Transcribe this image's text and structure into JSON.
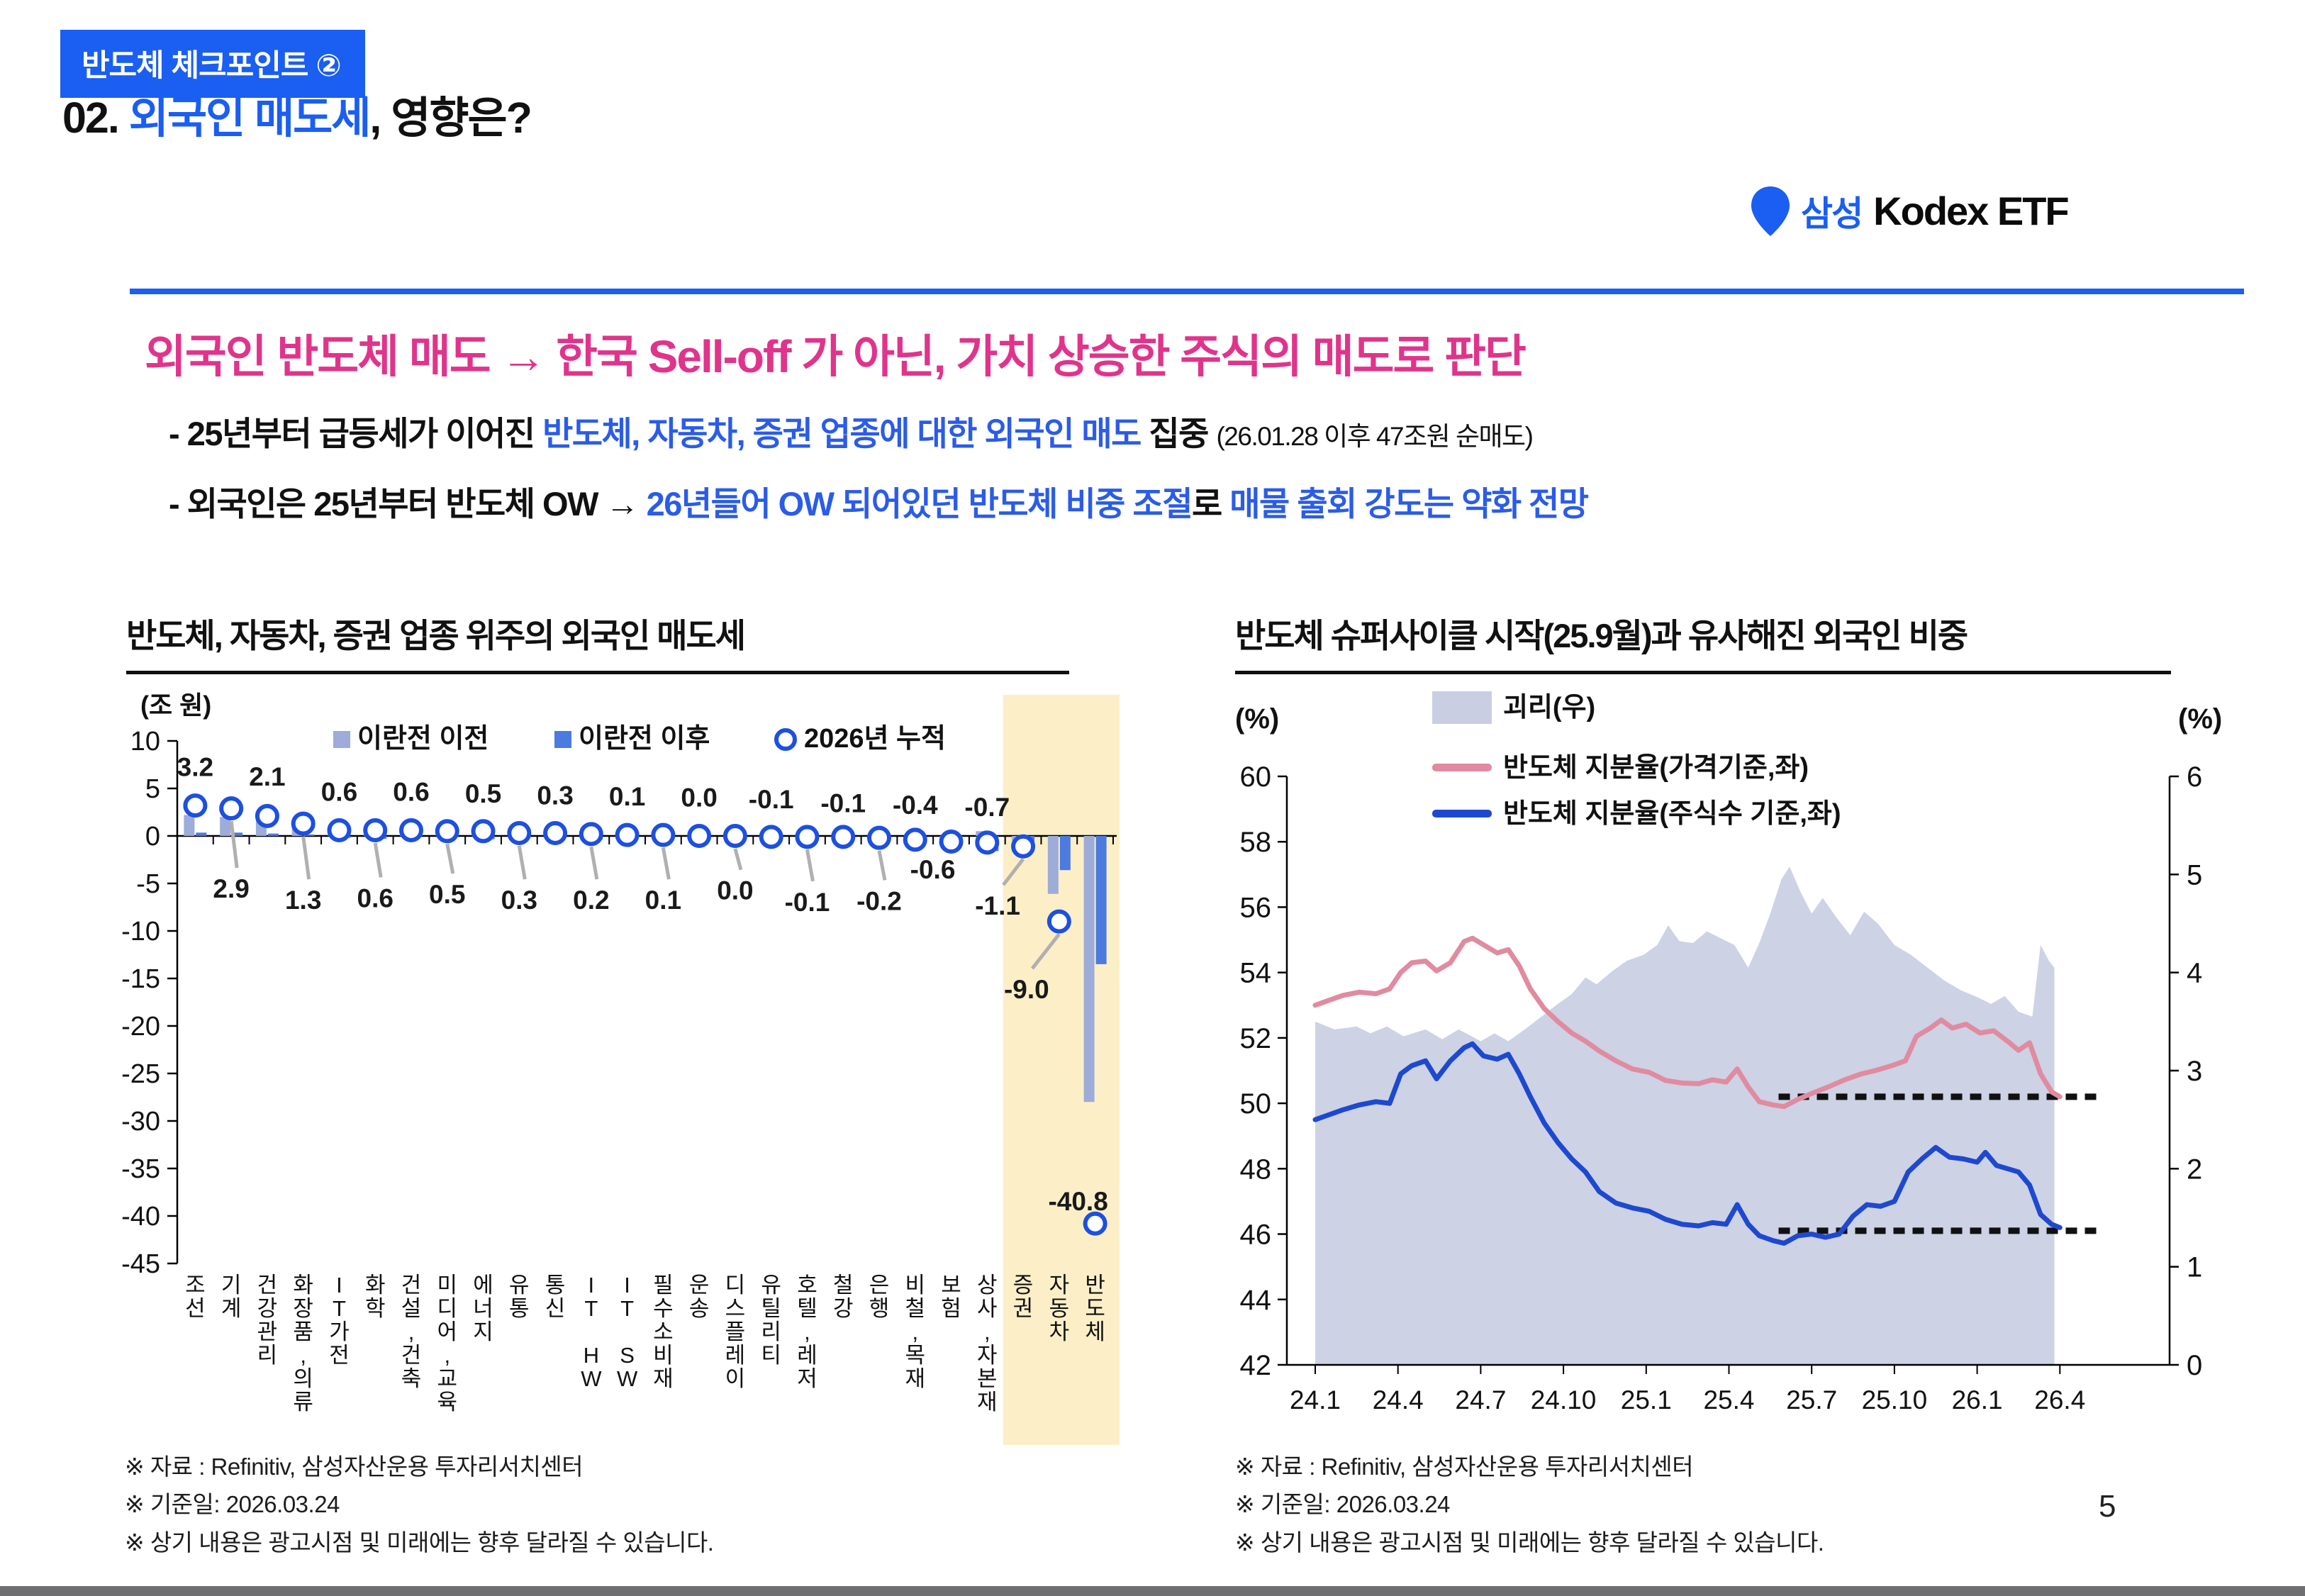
{
  "badge": {
    "label": "반도체 체크포인트 ②"
  },
  "title": {
    "prefix": "02. ",
    "highlight": "외국인 매도세",
    "suffix": ", 영향은?"
  },
  "brand": {
    "korean": "삼성",
    "latin": "Kodex ETF"
  },
  "headline": "외국인 반도체 매도 → 한국 Sell-off 가 아닌, 가치 상승한 주식의 매도로 판단",
  "bullets": [
    {
      "segments": [
        {
          "text": "- 25년부터 급등세가 이어진 ",
          "color": "black"
        },
        {
          "text": "반도체, 자동차, 증권 업종에 대한 외국인 매도",
          "color": "blue"
        },
        {
          "text": " 집중 ",
          "color": "black"
        },
        {
          "text": "(26.01.28 이후 47조원 순매도)",
          "color": "black",
          "small": true
        }
      ]
    },
    {
      "segments": [
        {
          "text": "- 외국인은 25년부터 반도체 OW → ",
          "color": "black"
        },
        {
          "text": "26년들어 OW 되어있던 반도체 비중 조절",
          "color": "blue"
        },
        {
          "text": "로 ",
          "color": "black"
        },
        {
          "text": "매물 출회 강도는 약화 전망",
          "color": "blue"
        }
      ]
    }
  ],
  "footnotes": [
    "※ 자료 : Refinitiv, 삼성자산운용 투자리서치센터",
    "※ 기준일: 2026.03.24",
    "※ 상기 내용은 광고시점 및 미래에는 향후 달라질 수 있습니다."
  ],
  "page": {
    "number": "5"
  },
  "colors": {
    "accent": "#1a5ef2",
    "text_blue": "#2b5ce8",
    "pink": "#e0348c",
    "bar_before": "#9dacd8",
    "bar_after": "#4c7ade",
    "circle_stroke": "#1d4fe0",
    "highlight_band": "#fcefc8",
    "area_fill": "#c9cee3",
    "line_pink": "#e08ba0",
    "line_blue": "#1e49cf",
    "dotted": "#111111"
  },
  "chart_data": [
    {
      "type": "bar",
      "title": "반도체, 자동차, 증권 업종 위주의 외국인 매도세",
      "unit_label": "(조 원)",
      "ylim": [
        -45,
        10
      ],
      "ytick_step": 5,
      "legend": [
        "이란전 이전",
        "이란전 이후",
        "2026년 누적"
      ],
      "highlight_categories": [
        "증권",
        "자동차",
        "반도체"
      ],
      "categories": [
        "조선",
        "기계",
        "건강관리",
        "화장품,의류",
        "IT가전",
        "화학",
        "건설,건축",
        "미디어,교육",
        "에너지",
        "유통",
        "통신",
        "IT HW",
        "IT SW",
        "필수소비재",
        "운송",
        "디스플레이",
        "유틸리티",
        "호텔,레저",
        "철강",
        "은행",
        "비철,목재",
        "보험",
        "상사,자본재",
        "증권",
        "자동차",
        "반도체"
      ],
      "series": [
        {
          "name": "이란전 이전",
          "values": [
            2.2,
            2.0,
            1.6,
            1.0,
            0.55,
            0.5,
            0.5,
            0.35,
            0.3,
            0.25,
            0.2,
            0.15,
            0.1,
            0.1,
            0.05,
            0.05,
            -0.05,
            -0.1,
            -0.1,
            -0.4,
            -0.3,
            -0.4,
            0.5,
            -0.5,
            -6.1,
            -28.0
          ]
        },
        {
          "name": "이란전 이후",
          "values": [
            0.35,
            0.35,
            0.25,
            0.15,
            -0.2,
            -0.3,
            0.1,
            0.1,
            -0.35,
            0.1,
            0.05,
            -0.4,
            0.05,
            -0.1,
            -0.3,
            -0.1,
            -0.05,
            -0.05,
            -0.1,
            -0.15,
            -0.1,
            -0.2,
            -1.6,
            -0.7,
            -3.6,
            -13.5
          ]
        },
        {
          "name": "2026년 누적",
          "values": [
            3.2,
            2.9,
            2.1,
            1.3,
            0.6,
            0.6,
            0.6,
            0.5,
            0.5,
            0.3,
            0.3,
            0.2,
            0.1,
            0.1,
            0.0,
            0.0,
            -0.1,
            -0.1,
            -0.1,
            -0.2,
            -0.4,
            -0.6,
            -0.7,
            -1.1,
            -9.0,
            -40.8
          ]
        }
      ],
      "label_y": [
        7.2,
        -5.6,
        6.2,
        -6.8,
        4.6,
        -6.6,
        4.6,
        -6.2,
        4.4,
        -6.8,
        4.2,
        -6.8,
        4.1,
        -6.8,
        4.0,
        -5.8,
        3.8,
        -7.0,
        3.4,
        -6.9,
        3.2,
        -3.6,
        3.0,
        -7.4,
        -16.2,
        -38.5
      ]
    },
    {
      "type": "line",
      "title": "반도체 슈퍼사이클 시작(25.9월)과 유사해진 외국인 비중",
      "left_axis_label": "(%)",
      "right_axis_label": "(%)",
      "left_ylim": [
        42,
        60
      ],
      "left_ytick_step": 2,
      "right_ylim": [
        0,
        6
      ],
      "right_ytick_step": 1,
      "x_tick_labels": [
        "24.1",
        "24.4",
        "24.7",
        "24.10",
        "25.1",
        "25.4",
        "25.7",
        "25.10",
        "26.1",
        "26.4"
      ],
      "series": [
        {
          "name": "괴리(우)",
          "axis": "right",
          "style": "area",
          "points": [
            [
              0,
              3.5
            ],
            [
              0.7,
              3.42
            ],
            [
              1.5,
              3.45
            ],
            [
              2,
              3.38
            ],
            [
              2.6,
              3.45
            ],
            [
              3.2,
              3.35
            ],
            [
              4,
              3.42
            ],
            [
              4.6,
              3.32
            ],
            [
              5.2,
              3.42
            ],
            [
              6,
              3.3
            ],
            [
              6.5,
              3.38
            ],
            [
              7,
              3.3
            ],
            [
              7.6,
              3.42
            ],
            [
              8.2,
              3.55
            ],
            [
              8.8,
              3.68
            ],
            [
              9.3,
              3.78
            ],
            [
              9.8,
              3.95
            ],
            [
              10.2,
              3.88
            ],
            [
              10.8,
              4.02
            ],
            [
              11.3,
              4.12
            ],
            [
              11.9,
              4.18
            ],
            [
              12.4,
              4.28
            ],
            [
              12.8,
              4.48
            ],
            [
              13.2,
              4.32
            ],
            [
              13.7,
              4.3
            ],
            [
              14.2,
              4.42
            ],
            [
              14.7,
              4.35
            ],
            [
              15.2,
              4.28
            ],
            [
              15.7,
              4.05
            ],
            [
              16.1,
              4.3
            ],
            [
              16.5,
              4.6
            ],
            [
              16.9,
              4.95
            ],
            [
              17.2,
              5.08
            ],
            [
              17.6,
              4.82
            ],
            [
              18,
              4.6
            ],
            [
              18.4,
              4.76
            ],
            [
              18.9,
              4.56
            ],
            [
              19.4,
              4.38
            ],
            [
              19.9,
              4.62
            ],
            [
              20.4,
              4.5
            ],
            [
              21,
              4.28
            ],
            [
              21.6,
              4.18
            ],
            [
              22.2,
              4.05
            ],
            [
              22.8,
              3.92
            ],
            [
              23.4,
              3.82
            ],
            [
              24,
              3.75
            ],
            [
              24.5,
              3.68
            ],
            [
              25,
              3.76
            ],
            [
              25.5,
              3.6
            ],
            [
              26,
              3.55
            ],
            [
              26.3,
              4.28
            ],
            [
              26.6,
              4.12
            ],
            [
              26.8,
              4.05
            ]
          ]
        },
        {
          "name": "반도체 지분율(가격기준,좌)",
          "axis": "left",
          "style": "line",
          "points": [
            [
              0,
              53.0
            ],
            [
              0.5,
              53.15
            ],
            [
              1,
              53.3
            ],
            [
              1.6,
              53.4
            ],
            [
              2.2,
              53.35
            ],
            [
              2.7,
              53.5
            ],
            [
              3.1,
              54.0
            ],
            [
              3.5,
              54.3
            ],
            [
              4,
              54.35
            ],
            [
              4.4,
              54.05
            ],
            [
              4.9,
              54.3
            ],
            [
              5.4,
              54.95
            ],
            [
              5.7,
              55.05
            ],
            [
              6.1,
              54.85
            ],
            [
              6.6,
              54.6
            ],
            [
              7,
              54.7
            ],
            [
              7.4,
              54.2
            ],
            [
              7.8,
              53.5
            ],
            [
              8.3,
              52.9
            ],
            [
              8.8,
              52.5
            ],
            [
              9.3,
              52.15
            ],
            [
              9.8,
              51.9
            ],
            [
              10.3,
              51.6
            ],
            [
              10.9,
              51.3
            ],
            [
              11.5,
              51.05
            ],
            [
              12.1,
              50.95
            ],
            [
              12.7,
              50.7
            ],
            [
              13.3,
              50.62
            ],
            [
              13.9,
              50.6
            ],
            [
              14.4,
              50.72
            ],
            [
              14.9,
              50.65
            ],
            [
              15.3,
              51.05
            ],
            [
              15.7,
              50.5
            ],
            [
              16.1,
              50.05
            ],
            [
              16.6,
              49.95
            ],
            [
              17,
              49.9
            ],
            [
              17.5,
              50.12
            ],
            [
              18,
              50.3
            ],
            [
              18.6,
              50.5
            ],
            [
              19.2,
              50.72
            ],
            [
              19.8,
              50.9
            ],
            [
              20.3,
              51.0
            ],
            [
              20.9,
              51.15
            ],
            [
              21.4,
              51.3
            ],
            [
              21.8,
              52.05
            ],
            [
              22.3,
              52.3
            ],
            [
              22.7,
              52.55
            ],
            [
              23.1,
              52.3
            ],
            [
              23.6,
              52.42
            ],
            [
              24.1,
              52.15
            ],
            [
              24.6,
              52.22
            ],
            [
              25.1,
              51.9
            ],
            [
              25.5,
              51.62
            ],
            [
              25.9,
              51.85
            ],
            [
              26.3,
              50.9
            ],
            [
              26.7,
              50.35
            ],
            [
              27,
              50.2
            ]
          ]
        },
        {
          "name": "반도체 지분율(주식수 기준,좌)",
          "axis": "left",
          "style": "line",
          "points": [
            [
              0,
              49.5
            ],
            [
              0.5,
              49.65
            ],
            [
              1,
              49.8
            ],
            [
              1.6,
              49.95
            ],
            [
              2.2,
              50.05
            ],
            [
              2.7,
              50.0
            ],
            [
              3.1,
              50.9
            ],
            [
              3.5,
              51.15
            ],
            [
              4,
              51.3
            ],
            [
              4.4,
              50.75
            ],
            [
              4.9,
              51.3
            ],
            [
              5.4,
              51.7
            ],
            [
              5.7,
              51.82
            ],
            [
              6.1,
              51.45
            ],
            [
              6.6,
              51.35
            ],
            [
              7,
              51.5
            ],
            [
              7.4,
              50.9
            ],
            [
              7.8,
              50.2
            ],
            [
              8.3,
              49.4
            ],
            [
              8.8,
              48.8
            ],
            [
              9.3,
              48.3
            ],
            [
              9.8,
              47.9
            ],
            [
              10.3,
              47.3
            ],
            [
              10.9,
              46.95
            ],
            [
              11.5,
              46.8
            ],
            [
              12.1,
              46.7
            ],
            [
              12.7,
              46.45
            ],
            [
              13.3,
              46.3
            ],
            [
              13.9,
              46.25
            ],
            [
              14.4,
              46.35
            ],
            [
              14.9,
              46.3
            ],
            [
              15.3,
              46.9
            ],
            [
              15.7,
              46.3
            ],
            [
              16.1,
              45.95
            ],
            [
              16.6,
              45.8
            ],
            [
              17,
              45.72
            ],
            [
              17.5,
              45.95
            ],
            [
              18,
              46.0
            ],
            [
              18.5,
              45.9
            ],
            [
              19,
              46.0
            ],
            [
              19.5,
              46.55
            ],
            [
              20,
              46.9
            ],
            [
              20.5,
              46.85
            ],
            [
              21,
              47.0
            ],
            [
              21.5,
              47.9
            ],
            [
              22,
              48.3
            ],
            [
              22.5,
              48.65
            ],
            [
              23,
              48.35
            ],
            [
              23.5,
              48.3
            ],
            [
              24,
              48.2
            ],
            [
              24.3,
              48.5
            ],
            [
              24.7,
              48.1
            ],
            [
              25.1,
              48.0
            ],
            [
              25.5,
              47.9
            ],
            [
              25.9,
              47.5
            ],
            [
              26.3,
              46.6
            ],
            [
              26.7,
              46.3
            ],
            [
              27,
              46.2
            ]
          ]
        }
      ],
      "reference_lines": [
        {
          "value": 50.2,
          "axis": "left",
          "from_month": 16.8,
          "to_month": 28.4
        },
        {
          "value": 46.1,
          "axis": "left",
          "from_month": 16.8,
          "to_month": 28.4
        }
      ]
    }
  ]
}
